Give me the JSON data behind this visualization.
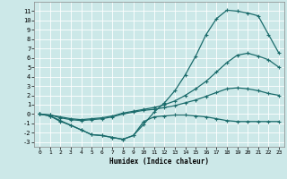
{
  "xlabel": "Humidex (Indice chaleur)",
  "bg_color": "#cce8e8",
  "grid_color": "#ffffff",
  "line_color": "#1a6b6b",
  "xlim": [
    -0.5,
    23.5
  ],
  "ylim": [
    -3.5,
    12
  ],
  "xticks": [
    0,
    1,
    2,
    3,
    4,
    5,
    6,
    7,
    8,
    9,
    10,
    11,
    12,
    13,
    14,
    15,
    16,
    17,
    18,
    19,
    20,
    21,
    22,
    23
  ],
  "yticks": [
    -3,
    -2,
    -1,
    0,
    1,
    2,
    3,
    4,
    5,
    6,
    7,
    8,
    9,
    10,
    11
  ],
  "curve1_x": [
    0,
    1,
    2,
    3,
    4,
    5,
    6,
    7,
    8,
    9,
    10,
    11,
    12,
    13,
    14,
    15,
    16,
    17,
    18,
    19,
    20,
    21,
    22,
    23
  ],
  "curve1_y": [
    0,
    -0.2,
    -0.7,
    -1.2,
    -1.7,
    -2.2,
    -2.3,
    -2.5,
    -2.7,
    -2.3,
    -1.1,
    0.2,
    1.2,
    2.5,
    4.2,
    6.2,
    8.5,
    10.2,
    11.1,
    11.0,
    10.8,
    10.5,
    8.5,
    6.5
  ],
  "curve2_x": [
    0,
    1,
    2,
    3,
    4,
    5,
    6,
    7,
    8,
    9,
    10,
    11,
    12,
    13,
    14,
    15,
    16,
    17,
    18,
    19,
    20,
    21,
    22,
    23
  ],
  "curve2_y": [
    0,
    -0.1,
    -0.3,
    -0.5,
    -0.6,
    -0.5,
    -0.4,
    -0.2,
    0.1,
    0.3,
    0.5,
    0.7,
    1.0,
    1.4,
    2.0,
    2.7,
    3.5,
    4.5,
    5.5,
    6.3,
    6.5,
    6.2,
    5.8,
    5.0
  ],
  "curve3_x": [
    0,
    1,
    2,
    3,
    4,
    5,
    6,
    7,
    8,
    9,
    10,
    11,
    12,
    13,
    14,
    15,
    16,
    17,
    18,
    19,
    20,
    21,
    22,
    23
  ],
  "curve3_y": [
    0,
    -0.1,
    -0.4,
    -0.6,
    -0.7,
    -0.6,
    -0.5,
    -0.3,
    0.0,
    0.2,
    0.4,
    0.5,
    0.7,
    0.9,
    1.2,
    1.5,
    1.9,
    2.3,
    2.7,
    2.8,
    2.7,
    2.5,
    2.2,
    2.0
  ],
  "curve4_x": [
    0,
    1,
    2,
    3,
    4,
    5,
    6,
    7,
    8,
    9,
    10,
    11,
    12,
    13,
    14,
    15,
    16,
    17,
    18,
    19,
    20,
    21,
    22,
    23
  ],
  "curve4_y": [
    0,
    -0.2,
    -0.8,
    -1.2,
    -1.7,
    -2.2,
    -2.3,
    -2.5,
    -2.7,
    -2.3,
    -0.8,
    -0.3,
    -0.2,
    -0.1,
    -0.1,
    -0.2,
    -0.3,
    -0.5,
    -0.7,
    -0.8,
    -0.8,
    -0.8,
    -0.8,
    -0.8
  ]
}
